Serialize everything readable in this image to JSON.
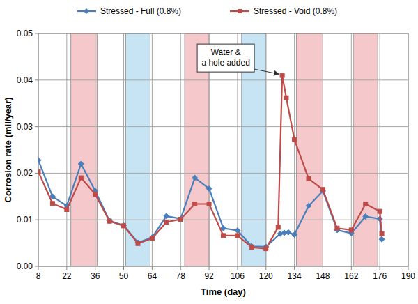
{
  "chart_data": {
    "type": "line",
    "x_label": "Time (day)",
    "y_label": "Corrosion rate (mil/year)",
    "xlim": [
      8,
      190
    ],
    "xticks": [
      8,
      22,
      36,
      50,
      64,
      78,
      92,
      106,
      120,
      134,
      148,
      162,
      176,
      190
    ],
    "ylim": [
      0,
      0.05
    ],
    "yticks": [
      {
        "value": 0,
        "label": "0.00"
      },
      {
        "value": 0.01,
        "label": "0.01"
      },
      {
        "value": 0.02,
        "label": "0.02"
      },
      {
        "value": 0.03,
        "label": "0.03"
      },
      {
        "value": 0.04,
        "label": "0.04"
      },
      {
        "value": 0.05,
        "label": "0.05"
      }
    ],
    "grid": true,
    "legend": "top",
    "bands": [
      {
        "start": 24,
        "end": 37,
        "color": "#f5c9cb"
      },
      {
        "start": 51,
        "end": 63,
        "color": "#c6e4f4"
      },
      {
        "start": 80,
        "end": 92,
        "color": "#f5c9cb"
      },
      {
        "start": 108,
        "end": 120,
        "color": "#c6e4f4"
      },
      {
        "start": 135,
        "end": 148,
        "color": "#f5c9cb"
      },
      {
        "start": 163,
        "end": 175,
        "color": "#f5c9cb"
      }
    ],
    "series": [
      {
        "name": "Stressed - Full (0.8%)",
        "color": "#4a7ebb",
        "marker": "diamond",
        "x": [
          8,
          15,
          22,
          29,
          36,
          43,
          50,
          57,
          64,
          71,
          78,
          85,
          92,
          99,
          106,
          113,
          120,
          127,
          129,
          131,
          134,
          141,
          148,
          155,
          162,
          169,
          176,
          177
        ],
        "values": [
          0.0228,
          0.015,
          0.013,
          0.022,
          0.0162,
          0.0098,
          0.0088,
          0.0051,
          0.0062,
          0.0108,
          0.0102,
          0.019,
          0.0167,
          0.0082,
          0.0077,
          0.0043,
          0.0042,
          0.007,
          0.0072,
          0.0073,
          0.0068,
          0.013,
          0.0162,
          0.0078,
          0.0071,
          0.0107,
          0.0102,
          0.0058
        ]
      },
      {
        "name": "Stressed - Void (0.8%)",
        "color": "#be4b48",
        "marker": "square",
        "x": [
          8,
          15,
          22,
          29,
          36,
          43,
          50,
          57,
          64,
          71,
          78,
          85,
          92,
          99,
          106,
          113,
          120,
          126,
          128,
          130,
          134,
          141,
          148,
          155,
          162,
          169,
          176,
          177
        ],
        "values": [
          0.0203,
          0.0135,
          0.0122,
          0.019,
          0.0155,
          0.0097,
          0.0087,
          0.0049,
          0.006,
          0.0095,
          0.0101,
          0.0134,
          0.0134,
          0.0066,
          0.0066,
          0.0041,
          0.0038,
          0.0084,
          0.041,
          0.0362,
          0.0272,
          0.0188,
          0.0165,
          0.0082,
          0.0078,
          0.0134,
          0.0118,
          0.007
        ]
      }
    ],
    "annotation": {
      "text": [
        "Water &",
        "a hole added"
      ],
      "x": 128,
      "y": 0.041
    }
  }
}
